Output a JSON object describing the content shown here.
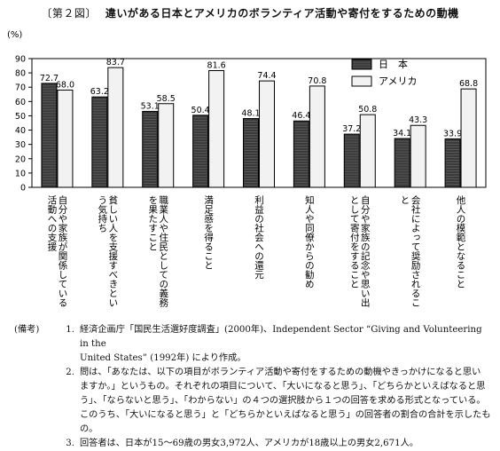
{
  "page": {
    "fig_label": "〔第２図〕",
    "title": "違いがある日本とアメリカのボランティア活動や寄付をするための動機"
  },
  "chart_data": {
    "type": "bar",
    "ylabel": "(%)",
    "ylim": [
      0,
      90
    ],
    "yticks": [
      0,
      10,
      20,
      30,
      40,
      50,
      60,
      70,
      80,
      90
    ],
    "grid": false,
    "legend_position": "top-right",
    "categories": [
      "自分や家族が関係している活動への支援",
      "貧しい人を支援すべきという気持ち",
      "職業人や住民としての義務を果たすこと",
      "満足感を得ること",
      "利益の社会への還元",
      "知人や同僚からの勧め",
      "自分や家族の記念や思い出として寄付をすること",
      "会社によって奨励されること",
      "他人の模範となること"
    ],
    "series": [
      {
        "name": "日　本",
        "color": "#3a3a3a",
        "values": [
          72.7,
          63.2,
          53.1,
          50.4,
          48.1,
          46.4,
          37.2,
          34.1,
          33.9
        ],
        "labels": [
          "72.7",
          "63.2",
          "53.1",
          "50.4",
          "48.1",
          "46.4",
          "37.2",
          "34.1",
          "33.9"
        ]
      },
      {
        "name": "アメリカ",
        "color": "#f2f2f2",
        "values": [
          68.0,
          83.7,
          58.5,
          81.6,
          74.4,
          70.8,
          50.8,
          43.3,
          68.8
        ],
        "labels": [
          "68.0",
          "83.7",
          "58.5",
          "81.6",
          "74.4",
          "70.8",
          "50.8",
          "43.3",
          "68.8"
        ]
      }
    ]
  },
  "notes": {
    "head": "(備考)",
    "items": [
      {
        "num": "1.",
        "lines": [
          "経済企画庁「国民生活選好度調査」(2000年)、Independent Sector “Giving and Volunteering in the",
          "United States” (1992年) により作成。"
        ]
      },
      {
        "num": "2.",
        "lines": [
          "問は、「あなたは、以下の項目がボランティア活動や寄付をするための動機やきっかけになると思い",
          "ますか。」というもの。それぞれの項目について、「大いになると思う」、「どちらかといえばなると思",
          "う」、「ならないと思う」、「わからない」の４つの選択肢から１つの回答を求める形式となっている。",
          "このうち、「大いになると思う」と「どちらかといえばなると思う」の回答者の割合の合計を示したもの。"
        ]
      },
      {
        "num": "3.",
        "lines": [
          "回答者は、日本が15～69歳の男女3,972人、アメリカが18歳以上の男女2,671人。"
        ]
      }
    ]
  }
}
